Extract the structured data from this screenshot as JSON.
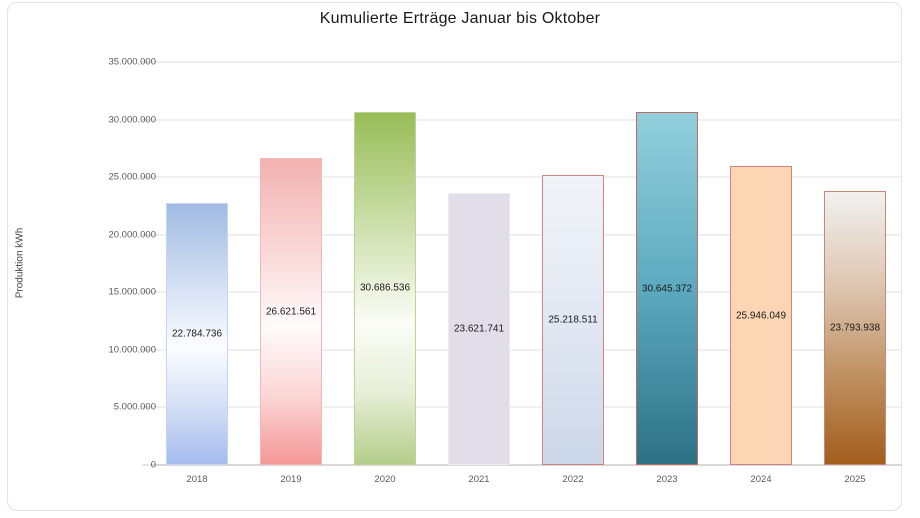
{
  "title": "Kumulierte Erträge Januar bis Oktober",
  "y_axis": {
    "label": "Produktion kWh",
    "ticks": [
      {
        "value": 0,
        "label": "0"
      },
      {
        "value": 5000000,
        "label": "5.000.000"
      },
      {
        "value": 10000000,
        "label": "10.000.000"
      },
      {
        "value": 15000000,
        "label": "15.000.000"
      },
      {
        "value": 20000000,
        "label": "20.000.000"
      },
      {
        "value": 25000000,
        "label": "25.000.000"
      },
      {
        "value": 30000000,
        "label": "30.000.000"
      },
      {
        "value": 35000000,
        "label": "35.000.000"
      }
    ]
  },
  "chart_data": {
    "type": "bar",
    "title": "Kumulierte Erträge Januar bis Oktober",
    "xlabel": "",
    "ylabel": "Produktion kWh",
    "ylim": [
      0,
      35000000
    ],
    "grid": true,
    "legend": "none",
    "categories": [
      "2018",
      "2019",
      "2020",
      "2021",
      "2022",
      "2023",
      "2024",
      "2025"
    ],
    "values": [
      22784736,
      26621561,
      30686536,
      23621741,
      25218511,
      30645372,
      25946049,
      23793938
    ],
    "value_labels": [
      "22.784.736",
      "26.621.561",
      "30.686.536",
      "23.621.741",
      "25.218.511",
      "30.645.372",
      "25.946.049",
      "23.793.938"
    ],
    "bar_styles": [
      {
        "fill_type": "gradient",
        "stops": [
          "#a0bae1 0%",
          "#dbe5f6 35%",
          "#fafcff 55%",
          "#d8e2f6 76%",
          "#a6bcee 100%"
        ],
        "border": "#c6d6f2"
      },
      {
        "fill_type": "gradient",
        "stops": [
          "#f3b2b2 0%",
          "#fbdede 35%",
          "#fffbfb 55%",
          "#fbd5d5 78%",
          "#f59797 100%"
        ],
        "border": "#f3b6b6"
      },
      {
        "fill_type": "gradient",
        "stops": [
          "#98bd58 0%",
          "#c9dda6 30%",
          "#fbfdf6 60%",
          "#e6eed6 80%",
          "#b4cd8a 100%"
        ],
        "border": "#bdd496"
      },
      {
        "fill_type": "solid",
        "color": "#e1dde9",
        "border": "#edebf3"
      },
      {
        "fill_type": "gradient",
        "stops": [
          "#f0f3f8 0%",
          "#e3e9f3 45%",
          "#ccd7e9 100%"
        ],
        "border": "#d2847c"
      },
      {
        "fill_type": "gradient",
        "stops": [
          "#92cfdd 0%",
          "#5da9be 50%",
          "#2d7185 100%"
        ],
        "border": "#bb6b61"
      },
      {
        "fill_type": "solid",
        "color": "#fcd6b4",
        "border": "#d2847c"
      },
      {
        "fill_type": "gradient",
        "stops": [
          "#f2f1f0 0%",
          "#ddc5b0 35%",
          "#bd8d5c 70%",
          "#a35d1d 100%"
        ],
        "border": "#c08a77"
      }
    ]
  },
  "colors": {
    "gridline": "#efefef",
    "axis_line": "#d8d8d8",
    "tick_text": "#595959",
    "title_text": "#1a1a1a",
    "value_label_text": "#1a1a1a",
    "frame_border": "#e3e3e3"
  }
}
